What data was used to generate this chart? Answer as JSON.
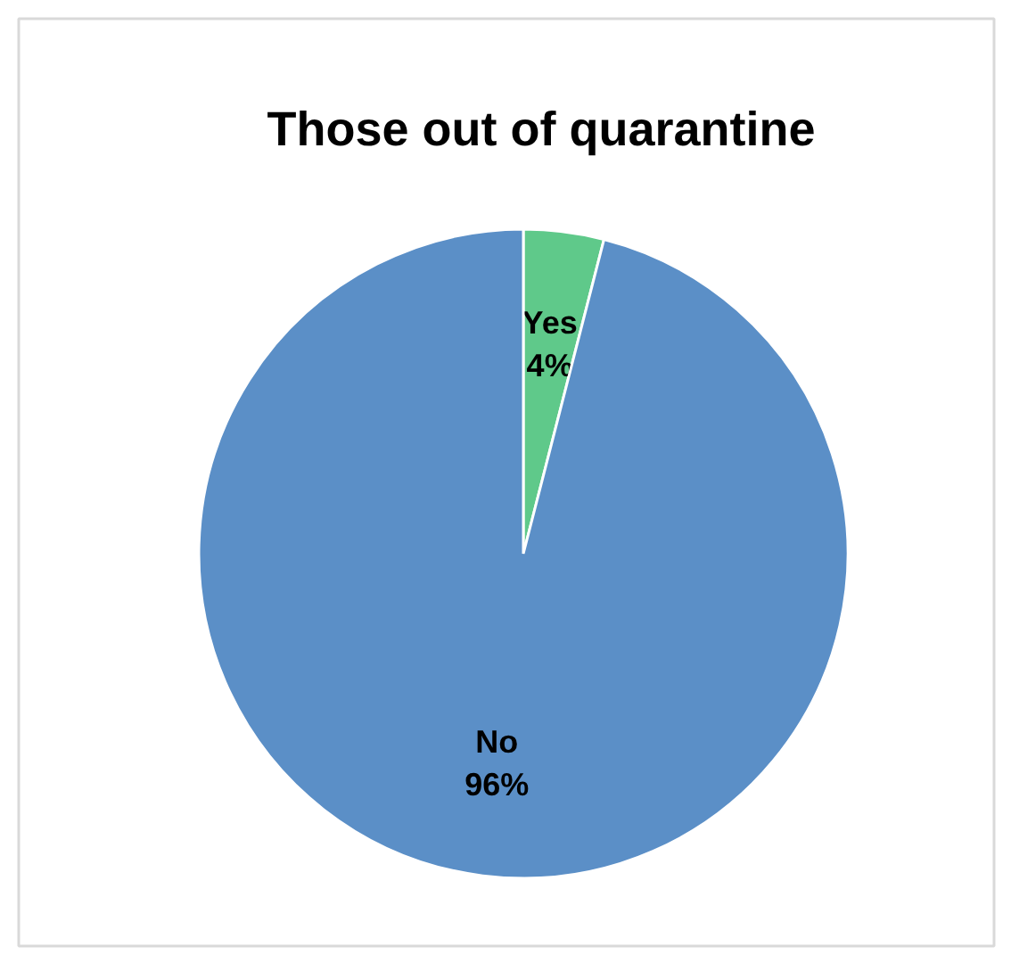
{
  "chart_data": {
    "type": "pie",
    "title": "Those out of quarantine",
    "categories": [
      "Yes",
      "No"
    ],
    "values": [
      4,
      96
    ],
    "colors": [
      "#5fc98a",
      "#5b8fc7"
    ],
    "value_labels": [
      "4%",
      "96%"
    ]
  }
}
